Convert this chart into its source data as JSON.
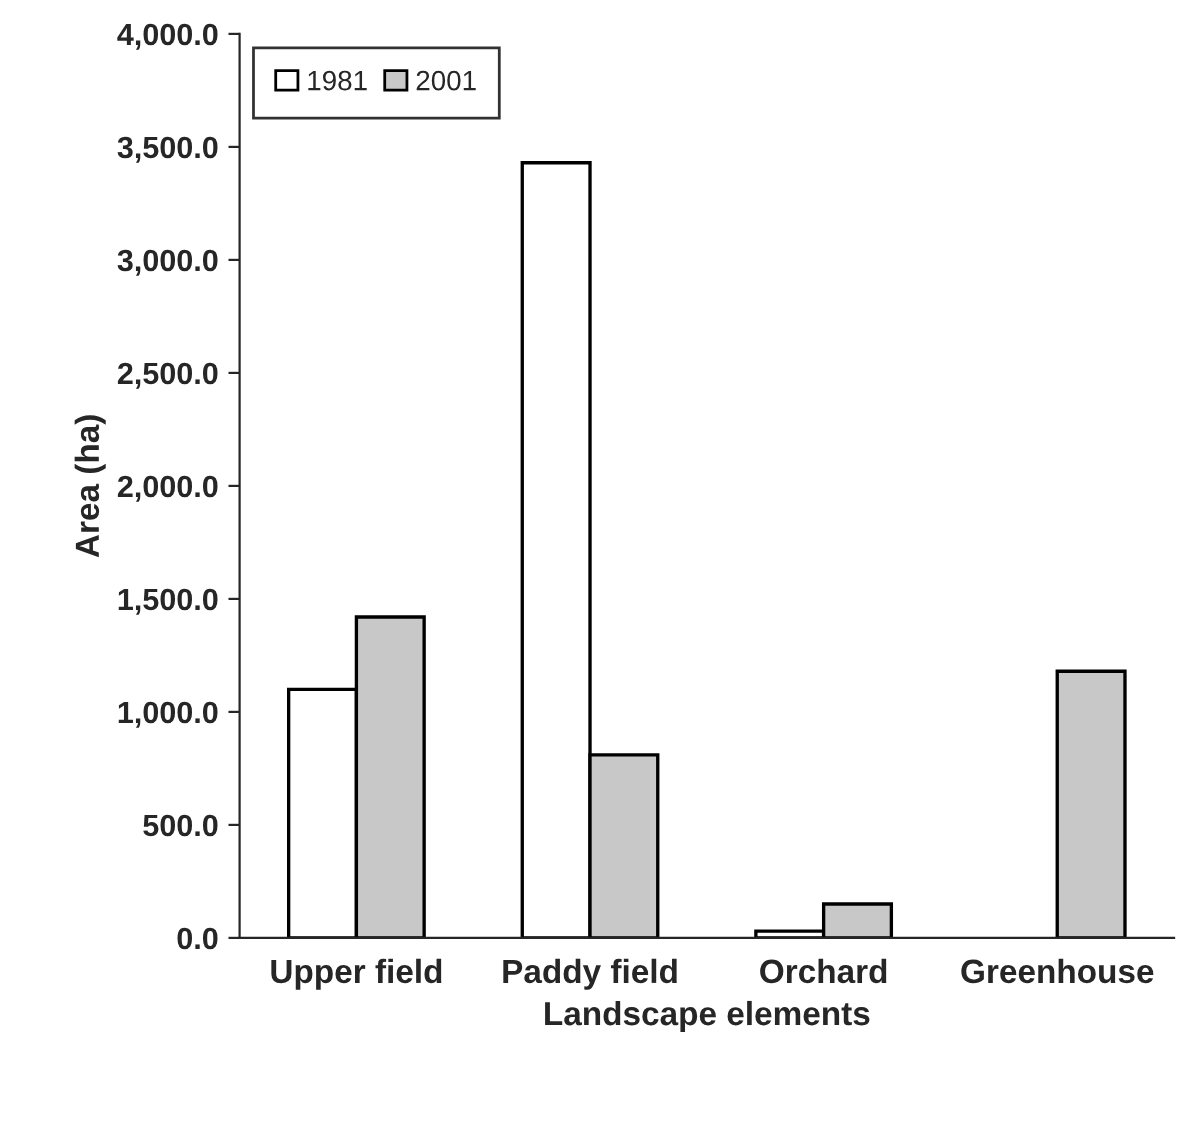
{
  "chart_data": {
    "type": "bar",
    "xlabel": "Landscape elements",
    "ylabel": "Area (ha)",
    "categories": [
      "Upper field",
      "Paddy field",
      "Orchard",
      "Greenhouse"
    ],
    "series": [
      {
        "name": "1981",
        "color": "#ffffff",
        "values": [
          1100,
          3430,
          30,
          null
        ]
      },
      {
        "name": "2001",
        "color": "#c8c8c8",
        "values": [
          1420,
          810,
          150,
          1180
        ]
      }
    ],
    "ylim": [
      0,
      4000
    ],
    "yticks": [
      {
        "value": 0,
        "label": "0.0"
      },
      {
        "value": 500,
        "label": "500.0"
      },
      {
        "value": 1000,
        "label": "1,000.0"
      },
      {
        "value": 1500,
        "label": "1,500.0"
      },
      {
        "value": 2000,
        "label": "2,000.0"
      },
      {
        "value": 2500,
        "label": "2,500.0"
      },
      {
        "value": 3000,
        "label": "3,000.0"
      },
      {
        "value": 3500,
        "label": "3,500.0"
      },
      {
        "value": 4000,
        "label": "4,000.0"
      }
    ],
    "grid": false,
    "legend": "top left"
  }
}
